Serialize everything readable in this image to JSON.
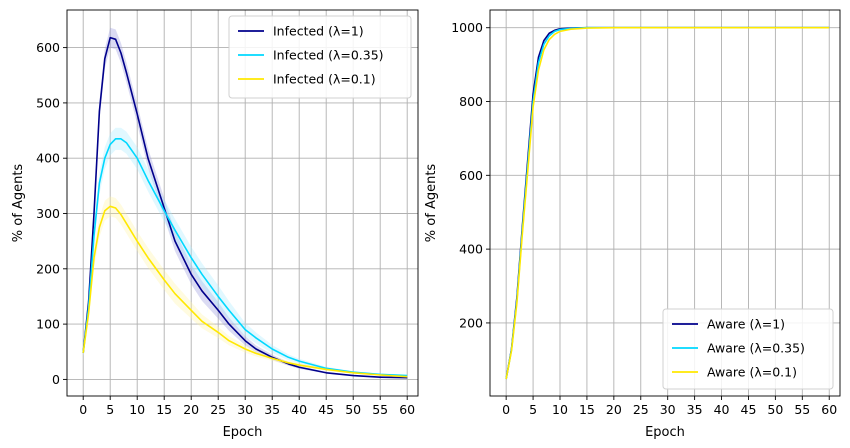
{
  "chart_data": [
    {
      "type": "line",
      "xlabel": "Epoch",
      "ylabel": "% of Agents",
      "xlim": [
        -3,
        62
      ],
      "ylim": [
        -30,
        668
      ],
      "xticks": [
        0,
        5,
        10,
        15,
        20,
        25,
        30,
        35,
        40,
        45,
        50,
        55,
        60
      ],
      "yticks": [
        0,
        100,
        200,
        300,
        400,
        500,
        600
      ],
      "grid": true,
      "legend_position": "upper-right",
      "series": [
        {
          "name": "Infected (λ=1)",
          "color": "#00008b",
          "band_color": "#9999dd",
          "x": [
            0,
            1,
            2,
            3,
            4,
            5,
            6,
            7,
            8,
            10,
            12,
            15,
            17,
            20,
            22,
            25,
            27,
            30,
            32,
            35,
            38,
            40,
            45,
            50,
            55,
            60
          ],
          "values": [
            48,
            140,
            300,
            485,
            580,
            618,
            615,
            590,
            555,
            480,
            400,
            310,
            250,
            190,
            160,
            125,
            100,
            70,
            55,
            40,
            28,
            22,
            12,
            7,
            4,
            3
          ],
          "band": 18
        },
        {
          "name": "Infected (λ=0.35)",
          "color": "#00d8ff",
          "band_color": "#a8ecff",
          "x": [
            0,
            1,
            2,
            3,
            4,
            5,
            6,
            7,
            8,
            10,
            12,
            15,
            17,
            20,
            22,
            25,
            27,
            30,
            32,
            35,
            38,
            40,
            45,
            50,
            55,
            60
          ],
          "values": [
            48,
            130,
            260,
            355,
            400,
            425,
            435,
            435,
            428,
            400,
            360,
            305,
            270,
            220,
            190,
            150,
            125,
            90,
            75,
            55,
            40,
            33,
            20,
            13,
            9,
            7
          ],
          "band": 20
        },
        {
          "name": "Infected (λ=0.1)",
          "color": "#ffe800",
          "band_color": "#fff3a6",
          "x": [
            0,
            1,
            2,
            3,
            4,
            5,
            6,
            7,
            8,
            10,
            12,
            15,
            17,
            20,
            22,
            25,
            27,
            30,
            32,
            35,
            38,
            40,
            45,
            50,
            55,
            60
          ],
          "values": [
            48,
            120,
            220,
            275,
            305,
            313,
            310,
            298,
            282,
            250,
            220,
            180,
            155,
            125,
            105,
            85,
            70,
            55,
            47,
            38,
            30,
            26,
            18,
            12,
            8,
            5
          ],
          "band": 18
        }
      ]
    },
    {
      "type": "line",
      "xlabel": "Epoch",
      "ylabel": "% of Agents",
      "xlim": [
        -3,
        62
      ],
      "ylim": [
        2,
        1048
      ],
      "xticks": [
        0,
        5,
        10,
        15,
        20,
        25,
        30,
        35,
        40,
        45,
        50,
        55,
        60
      ],
      "yticks": [
        200,
        400,
        600,
        800,
        1000
      ],
      "grid": true,
      "legend_position": "lower-right",
      "series": [
        {
          "name": "Aware (λ=1)",
          "color": "#00008b",
          "x": [
            0,
            1,
            2,
            3,
            4,
            5,
            6,
            7,
            8,
            9,
            10,
            12,
            15,
            20,
            30,
            40,
            50,
            60
          ],
          "values": [
            48,
            130,
            270,
            460,
            640,
            820,
            920,
            965,
            985,
            993,
            997,
            999,
            1000,
            1000,
            1000,
            1000,
            1000,
            1000
          ]
        },
        {
          "name": "Aware (λ=0.35)",
          "color": "#00d8ff",
          "x": [
            0,
            1,
            2,
            3,
            4,
            5,
            6,
            7,
            8,
            9,
            10,
            12,
            15,
            20,
            30,
            40,
            50,
            60
          ],
          "values": [
            48,
            128,
            262,
            450,
            625,
            800,
            905,
            955,
            978,
            990,
            995,
            998,
            1000,
            1000,
            1000,
            1000,
            1000,
            1000
          ]
        },
        {
          "name": "Aware (λ=0.1)",
          "color": "#ffe800",
          "x": [
            0,
            1,
            2,
            3,
            4,
            5,
            6,
            7,
            8,
            9,
            10,
            12,
            15,
            20,
            30,
            40,
            50,
            60
          ],
          "values": [
            48,
            125,
            255,
            440,
            610,
            785,
            885,
            940,
            968,
            982,
            990,
            996,
            999,
            1000,
            1000,
            1000,
            1000,
            1000
          ]
        }
      ]
    }
  ]
}
